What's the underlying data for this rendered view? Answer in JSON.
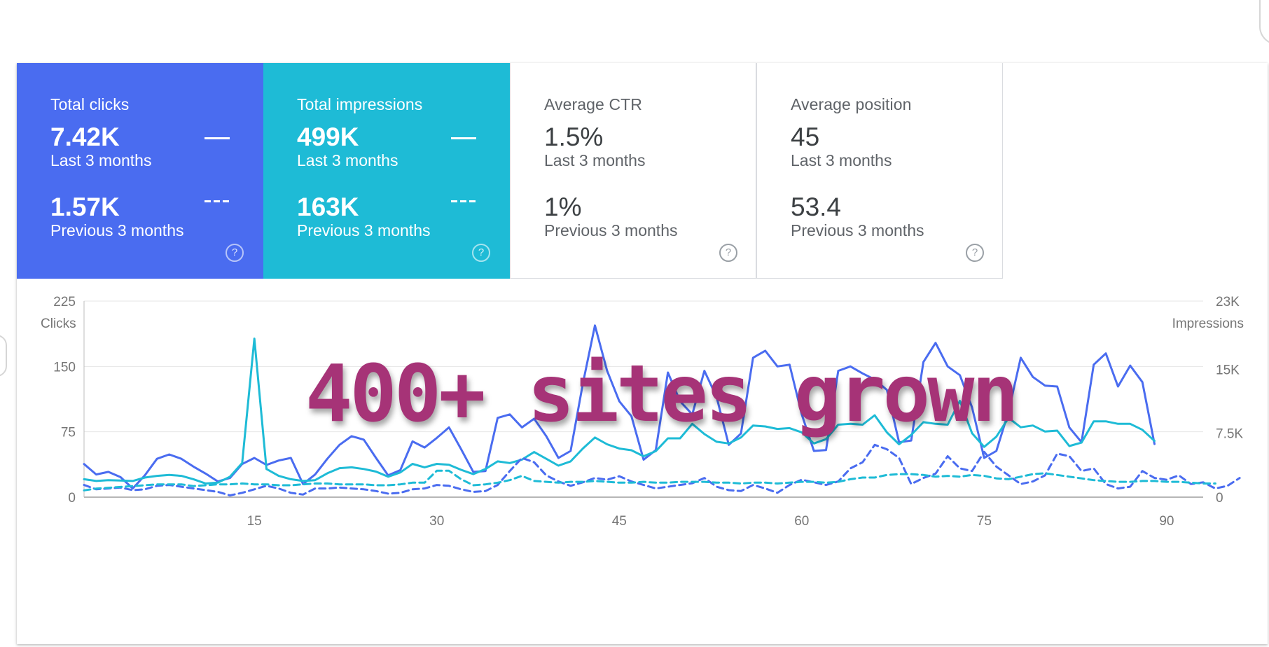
{
  "metrics": [
    {
      "label": "Total clicks",
      "current": "7.42K",
      "current_period": "Last 3 months",
      "previous": "1.57K",
      "previous_period": "Previous 3 months",
      "bg": "#4a6cf0"
    },
    {
      "label": "Total impressions",
      "current": "499K",
      "current_period": "Last 3 months",
      "previous": "163K",
      "previous_period": "Previous 3 months",
      "bg": "#1ebbd6"
    },
    {
      "label": "Average CTR",
      "current": "1.5%",
      "current_period": "Last 3 months",
      "previous": "1%",
      "previous_period": "Previous 3 months",
      "bg": "#ffffff"
    },
    {
      "label": "Average position",
      "current": "45",
      "current_period": "Last 3 months",
      "previous": "53.4",
      "previous_period": "Previous 3 months",
      "bg": "#ffffff"
    }
  ],
  "help_glyph": "?",
  "overlay": "400+ sites grown",
  "colors": {
    "clicks": "#4a6cf0",
    "impressions": "#1ebbd6",
    "grid": "#e6e6e6",
    "axis_text": "#757575",
    "overlay": "#a63377"
  },
  "chart_data": {
    "type": "line",
    "xlim": [
      1,
      93
    ],
    "x_ticks": [
      15,
      30,
      45,
      60,
      75,
      90
    ],
    "left_axis": {
      "label": "Clicks",
      "ylim": [
        0,
        225
      ],
      "ticks": [
        0,
        75,
        150,
        225
      ],
      "tick_labels": [
        "0",
        "75",
        "150",
        "225"
      ]
    },
    "right_axis": {
      "label": "Impressions",
      "ylim": [
        0,
        23000
      ],
      "ticks": [
        0,
        7500,
        15000,
        23000
      ],
      "tick_labels": [
        "0",
        "7.5K",
        "15K",
        "23K"
      ]
    },
    "series": [
      {
        "name": "Total clicks",
        "axis": "left",
        "style": "solid",
        "values": [
          38,
          26,
          29,
          23,
          10,
          25,
          44,
          49,
          44,
          35,
          27,
          18,
          22,
          38,
          45,
          37,
          42,
          45,
          15,
          26,
          44,
          60,
          70,
          66,
          45,
          25,
          31,
          64,
          57,
          68,
          80,
          55,
          29,
          30,
          91,
          95,
          80,
          90,
          70,
          45,
          53,
          130,
          197,
          145,
          110,
          93,
          43,
          54,
          143,
          110,
          95,
          145,
          115,
          60,
          73,
          160,
          168,
          150,
          152,
          95,
          53,
          54,
          145,
          150,
          142,
          135,
          123,
          63,
          65,
          155,
          177,
          150,
          140,
          103,
          45,
          53,
          98,
          160,
          138,
          128,
          127,
          80,
          63,
          152,
          165,
          127,
          151,
          132,
          61,
          null,
          null,
          null,
          null
        ]
      },
      {
        "name": "Total impressions",
        "axis": "right",
        "style": "solid",
        "values": [
          2100,
          1900,
          2000,
          1950,
          1900,
          2300,
          2500,
          2600,
          2500,
          2100,
          1600,
          1700,
          2400,
          4000,
          18600,
          3300,
          2500,
          2100,
          1900,
          2000,
          2800,
          3400,
          3500,
          3300,
          3000,
          2400,
          2900,
          3900,
          3500,
          3900,
          3800,
          3200,
          2700,
          3300,
          4200,
          4000,
          4400,
          5300,
          4500,
          3700,
          4200,
          5700,
          7000,
          6200,
          5700,
          5500,
          4800,
          5400,
          6900,
          6900,
          8600,
          7400,
          6500,
          6300,
          7000,
          8400,
          8300,
          8000,
          8100,
          7600,
          6300,
          6800,
          8500,
          8600,
          8500,
          9600,
          7600,
          6200,
          7300,
          8800,
          8600,
          8500,
          11300,
          7500,
          5900,
          7100,
          9300,
          8200,
          8400,
          7700,
          7800,
          6000,
          6400,
          8900,
          8900,
          8600,
          8600,
          7900,
          6600,
          null,
          null,
          null,
          null
        ]
      },
      {
        "name": "Total clicks (previous 3 months)",
        "axis": "left",
        "style": "dashed",
        "values": [
          14,
          9,
          10,
          11,
          8,
          9,
          13,
          14,
          12,
          10,
          8,
          6,
          2,
          5,
          9,
          13,
          10,
          5,
          3,
          10,
          10,
          11,
          10,
          9,
          7,
          4,
          5,
          9,
          10,
          14,
          13,
          9,
          6,
          7,
          14,
          30,
          45,
          40,
          25,
          18,
          13,
          17,
          22,
          20,
          24,
          18,
          14,
          10,
          12,
          14,
          16,
          22,
          12,
          8,
          7,
          14,
          10,
          5,
          14,
          20,
          17,
          14,
          18,
          33,
          40,
          60,
          55,
          45,
          15,
          22,
          27,
          47,
          33,
          30,
          52,
          35,
          25,
          15,
          18,
          25,
          50,
          47,
          30,
          33,
          15,
          10,
          12,
          30,
          22,
          20,
          25,
          15,
          17,
          10,
          13,
          22
        ]
      },
      {
        "name": "Total impressions (previous 3 months)",
        "axis": "right",
        "style": "dashed",
        "values": [
          800,
          1000,
          1100,
          1200,
          1300,
          1400,
          1500,
          1500,
          1500,
          1300,
          1400,
          1500,
          1500,
          1600,
          1500,
          1500,
          1400,
          1400,
          1500,
          1600,
          1600,
          1500,
          1500,
          1500,
          1400,
          1400,
          1500,
          1700,
          1700,
          3100,
          3100,
          2100,
          1400,
          1500,
          1700,
          2000,
          2500,
          1900,
          1800,
          1700,
          1800,
          1800,
          1900,
          1800,
          1700,
          1700,
          1800,
          1700,
          1700,
          1800,
          1800,
          1800,
          1700,
          1700,
          1600,
          1700,
          1700,
          1600,
          1700,
          1800,
          1800,
          1700,
          1800,
          2100,
          2300,
          2300,
          2600,
          2700,
          2700,
          2600,
          2400,
          2500,
          2400,
          2600,
          2500,
          2200,
          2100,
          2400,
          2700,
          2800,
          2600,
          2400,
          2200,
          2000,
          1900,
          1800,
          1800,
          1900,
          1900,
          1800,
          1800,
          1700,
          1600,
          1600
        ]
      }
    ]
  }
}
